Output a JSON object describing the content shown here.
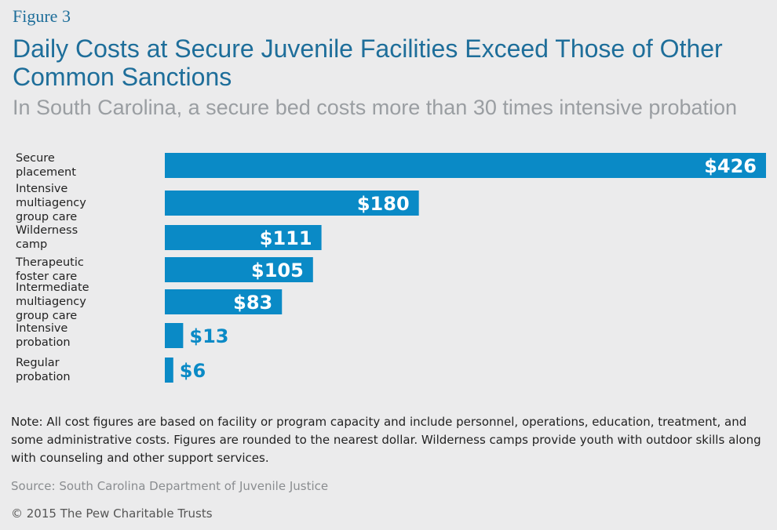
{
  "header": {
    "figure": "Figure 3"
  },
  "chart_data": {
    "type": "hbar",
    "title": "Daily Costs at Secure Juvenile Facilities Exceed Those of Other Common Sanctions",
    "subtitle": "In South Carolina, a secure bed costs more than 30 times intensive probation",
    "categories": [
      "Secure placement",
      "Intensive multiagency\ngroup care",
      "Wilderness camp",
      "Therapeutic foster care",
      "Intermediate\nmultiagency group care",
      "Intensive probation",
      "Regular probation"
    ],
    "values": [
      426,
      180,
      111,
      105,
      83,
      13,
      6
    ],
    "value_labels": [
      "$426",
      "$180",
      "$111",
      "$105",
      "$83",
      "$13",
      "$6"
    ],
    "color": "#0a8ac6",
    "xlim": [
      0,
      426
    ]
  },
  "footer": {
    "note": "Note: All cost figures are based on facility or program capacity and include personnel, operations, education, treatment, and some administrative costs. Figures are rounded to the nearest dollar. Wilderness camps provide youth with outdoor skills along with counseling and other support services.",
    "source": "Source: South Carolina Department of Juvenile Justice",
    "copyright": "© 2015 The Pew Charitable Trusts"
  }
}
